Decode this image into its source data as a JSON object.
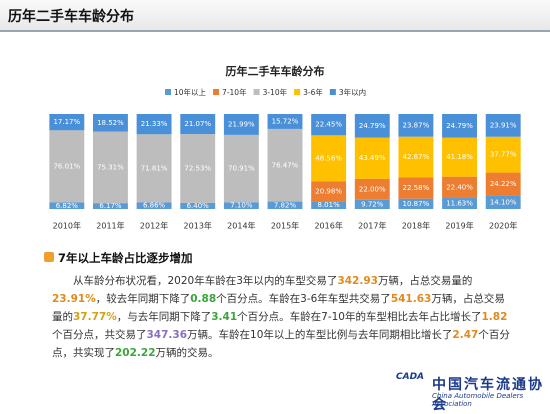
{
  "header": {
    "title": "历年二手车车龄分布"
  },
  "chart_data": {
    "type": "stacked_bar",
    "title": "历年二手车车龄分布",
    "categories": [
      "2010年",
      "2011年",
      "2012年",
      "2013年",
      "2014年",
      "2015年",
      "2016年",
      "2017年",
      "2018年",
      "2019年",
      "2020年"
    ],
    "series": [
      {
        "name": "10年以上",
        "color": "#5b9bd5",
        "values": [
          6.82,
          6.17,
          6.86,
          6.4,
          7.1,
          7.82,
          8.01,
          9.72,
          10.87,
          11.63,
          14.1
        ],
        "value_labels": [
          "6.82%",
          "6.17%",
          "6.86%",
          "6.40%",
          "7.10%",
          "7.82%",
          "8.01%",
          "9.72%",
          "10.87%",
          "11.63%",
          "14.10%"
        ]
      },
      {
        "name": "7-10年",
        "color": "#ed7d31",
        "values": [
          null,
          null,
          null,
          null,
          null,
          null,
          20.98,
          22.0,
          22.58,
          22.4,
          24.22
        ],
        "value_labels": [
          null,
          null,
          null,
          null,
          null,
          null,
          "20.98%",
          "22.00%",
          "22.58%",
          "22.40%",
          "24.22%"
        ]
      },
      {
        "name": "3-10年",
        "color": "#bdbdbd",
        "values": [
          76.01,
          75.31,
          71.81,
          72.53,
          70.91,
          76.47,
          null,
          null,
          null,
          null,
          null
        ],
        "value_labels": [
          "76.01%",
          "75.31%",
          "71.81%",
          "72.53%",
          "70.91%",
          "76.47%",
          null,
          null,
          null,
          null,
          null
        ]
      },
      {
        "name": "3-6年",
        "color": "#ffc000",
        "values": [
          null,
          null,
          null,
          null,
          null,
          null,
          48.56,
          43.49,
          42.67,
          41.18,
          37.77
        ],
        "value_labels": [
          null,
          null,
          null,
          null,
          null,
          null,
          "48.56%",
          "43.49%",
          "42.67%",
          "41.18%",
          "37.77%"
        ]
      },
      {
        "name": "3年以内",
        "color": "#4a90d9",
        "values": [
          17.17,
          18.52,
          21.33,
          21.07,
          21.99,
          15.72,
          22.45,
          24.79,
          23.87,
          24.79,
          23.91
        ],
        "value_labels": [
          "17.17%",
          "18.52%",
          "21.33%",
          "21.07%",
          "21.99%",
          "15.72%",
          "22.45%",
          "24.79%",
          "23.87%",
          "24.79%",
          "23.91%"
        ]
      }
    ]
  },
  "section": {
    "title": "7年以上车龄占比逐步增加",
    "paragraph": [
      {
        "text": "从车龄分布状况看，2020年车龄在3年以内的车型交易了"
      },
      {
        "text": "342.93",
        "color": "#e08a1e"
      },
      {
        "text": "万辆，占总交易量的"
      },
      {
        "text": "23.91%",
        "color": "#e08a1e"
      },
      {
        "text": "，较去年同期下降了"
      },
      {
        "text": "0.88",
        "color": "#3aa53a"
      },
      {
        "text": "个百分点。车龄在3-6年车型共交易了"
      },
      {
        "text": "541.63",
        "color": "#e08a1e"
      },
      {
        "text": "万辆，占总交易量的"
      },
      {
        "text": "37.77%",
        "color": "#d4a017"
      },
      {
        "text": "，与去年同期下降了"
      },
      {
        "text": "3.41",
        "color": "#3aa53a"
      },
      {
        "text": "个百分点。车龄在7-10年的车型相比去年占比增长了"
      },
      {
        "text": "1.82",
        "color": "#e08a1e"
      },
      {
        "text": "个百分点，共交易了"
      },
      {
        "text": "347.36",
        "color": "#8a6fc0"
      },
      {
        "text": "万辆。车龄在10年以上的车型比例与去年同期相比增长了"
      },
      {
        "text": "2.47",
        "color": "#e08a1e"
      },
      {
        "text": "个百分点，共实现了"
      },
      {
        "text": "202.22",
        "color": "#3aa53a"
      },
      {
        "text": "万辆的交易。"
      }
    ]
  },
  "logo": {
    "mark": "CADA",
    "name": "中国汽车流通协会",
    "english": "China Automobile Dealers Association"
  }
}
